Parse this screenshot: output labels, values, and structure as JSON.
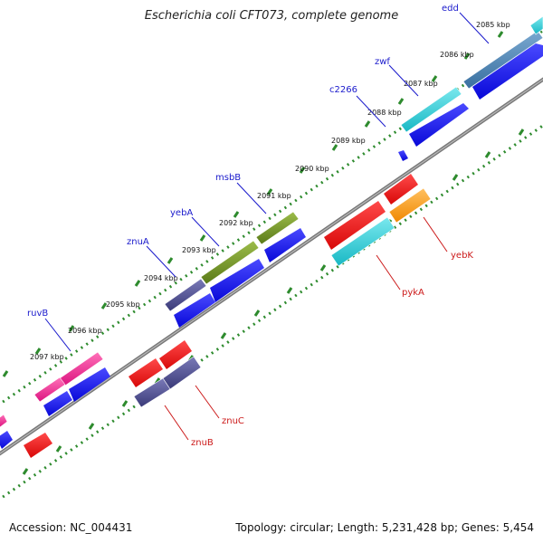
{
  "title": "Escherichia coli CFT073, complete genome",
  "footer": {
    "accession": "Accession: NC_004431",
    "summary": "Topology: circular; Length: 5,231,428 bp; Genes: 5,454"
  },
  "colors": {
    "background": "#ffffff",
    "backbone": "#888888",
    "tick": "#2e8b2e",
    "plus_label": "#1a1acc",
    "minus_label": "#cc1a1a",
    "cds": "#1010ee",
    "cds_minus": "#ee1010",
    "navy": "#4a4a8a",
    "olive": "#6b8e23",
    "cyan": "#22c8d0",
    "magenta": "#ee1c8c",
    "orange": "#ff9910",
    "steel": "#4a80b0"
  },
  "kbp_labels": [
    "2085 kbp",
    "2086 kbp",
    "2087 kbp",
    "2088 kbp",
    "2089 kbp",
    "2090 kbp",
    "2091 kbp",
    "2092 kbp",
    "2093 kbp",
    "2094 kbp",
    "2095 kbp",
    "2096 kbp",
    "2097 kbp"
  ],
  "gene_labels_plus": [
    "edd",
    "zwf",
    "c2266",
    "msbB",
    "yebA",
    "znuA",
    "ruvB"
  ],
  "gene_labels_minus": [
    "yebK",
    "pykA",
    "znuC",
    "znuB"
  ]
}
